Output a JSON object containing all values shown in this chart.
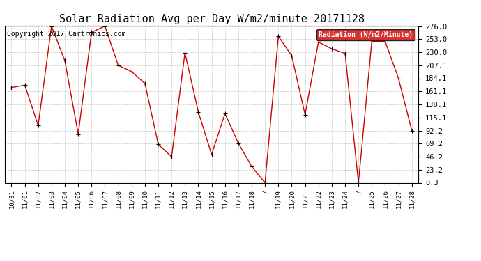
{
  "title": "Solar Radiation Avg per Day W/m2/minute 20171128",
  "copyright": "Copyright 2017 Cartronics.com",
  "legend_label": "Radiation (W/m2/Minute)",
  "x_labels": [
    "10/31",
    "11/01",
    "11/02",
    "11/03",
    "11/04",
    "11/05",
    "11/06",
    "11/07",
    "11/08",
    "11/09",
    "11/10",
    "11/11",
    "11/12",
    "11/13",
    "11/14",
    "11/15",
    "11/16",
    "11/17",
    "11/18",
    "/",
    "11/19",
    "11/20",
    "11/21",
    "11/22",
    "11/23",
    "11/24",
    "/",
    "11/25",
    "11/26",
    "11/27",
    "11/28"
  ],
  "y_values": [
    168,
    172,
    101,
    276,
    215,
    86,
    265,
    276,
    207,
    196,
    175,
    68,
    46,
    229,
    125,
    50,
    122,
    70,
    29,
    0.3,
    258,
    224,
    120,
    248,
    236,
    228,
    0.3,
    249,
    249,
    184,
    92
  ],
  "yticks": [
    0.3,
    23.2,
    46.2,
    69.2,
    92.2,
    115.1,
    138.1,
    161.1,
    184.1,
    207.1,
    230.0,
    253.0,
    276.0
  ],
  "line_color": "#cc0000",
  "marker_color": "#000000",
  "bg_color": "#ffffff",
  "plot_bg_color": "#ffffff",
  "grid_color": "#bbbbbb",
  "title_fontsize": 11,
  "copyright_fontsize": 7,
  "legend_bg_color": "#cc0000",
  "legend_text_color": "#ffffff",
  "ymin": 0.3,
  "ymax": 276.0
}
